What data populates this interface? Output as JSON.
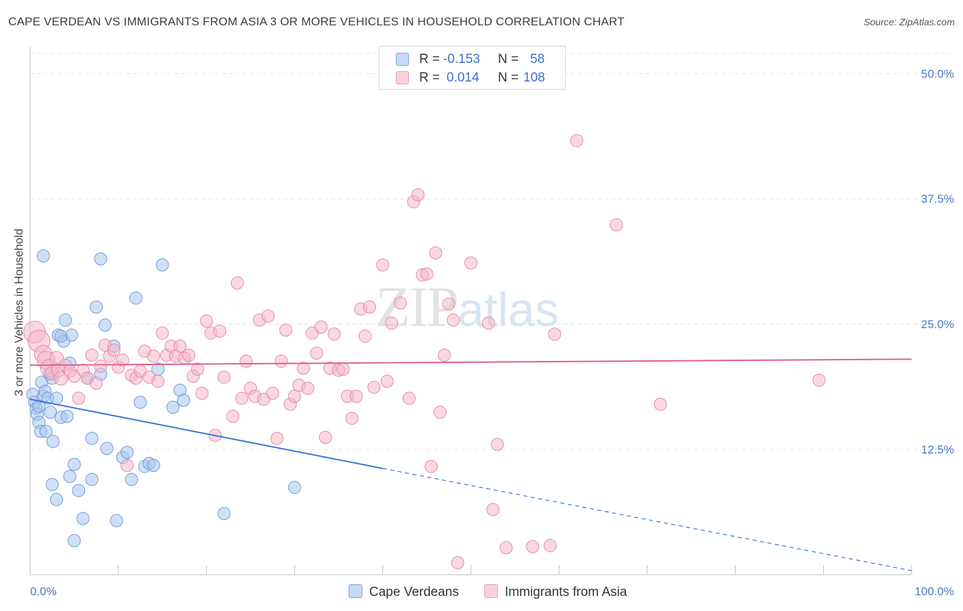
{
  "title": "CAPE VERDEAN VS IMMIGRANTS FROM ASIA 3 OR MORE VEHICLES IN HOUSEHOLD CORRELATION CHART",
  "source": "Source: ZipAtlas.com",
  "watermark": {
    "a": "ZIP",
    "b": "atlas"
  },
  "legend_top": {
    "rows": [
      {
        "r_key": "R =",
        "r_val": "-0.153",
        "n_key": "N =",
        "n_val": "58",
        "color": "#a8c6ef"
      },
      {
        "r_key": "R =",
        "r_val": "0.014",
        "n_key": "N =",
        "n_val": "108",
        "color": "#f4b8cb"
      }
    ]
  },
  "legend_bottom": [
    {
      "label": "Cape Verdeans",
      "color": "#a8c6ef"
    },
    {
      "label": "Immigrants from Asia",
      "color": "#f4b8cb"
    }
  ],
  "chart_data": {
    "type": "scatter",
    "title": "CAPE VERDEAN VS IMMIGRANTS FROM ASIA 3 OR MORE VEHICLES IN HOUSEHOLD CORRELATION CHART",
    "xlabel": "",
    "ylabel": "3 or more Vehicles in Household",
    "xlim": [
      0,
      100
    ],
    "ylim": [
      0,
      52
    ],
    "x_tick_labels": [
      "0.0%",
      "100.0%"
    ],
    "y_ticks": [
      12.5,
      25.0,
      37.5,
      50.0
    ],
    "y_tick_labels": [
      "12.5%",
      "25.0%",
      "37.5%",
      "50.0%"
    ],
    "grid": "horizontal dashed",
    "legend_position": "top-center",
    "series": [
      {
        "name": "Cape Verdeans",
        "color": "#a8c6ef",
        "stroke": "#6f9ad8",
        "trend": {
          "x0": 0,
          "y0": 17.5,
          "x1": 40,
          "y1": 10.6,
          "dash_to_x": 100,
          "dash_to_y": 0.4,
          "color": "#3a76d4"
        },
        "points": [
          [
            0.3,
            18.0
          ],
          [
            0.5,
            17.2
          ],
          [
            0.7,
            16.6
          ],
          [
            0.8,
            16.0
          ],
          [
            1.0,
            16.8
          ],
          [
            1.0,
            15.2
          ],
          [
            1.2,
            14.3
          ],
          [
            1.3,
            19.2
          ],
          [
            1.5,
            17.8
          ],
          [
            1.7,
            18.3
          ],
          [
            1.8,
            14.3
          ],
          [
            2.0,
            17.6
          ],
          [
            2.2,
            20.0
          ],
          [
            2.3,
            16.2
          ],
          [
            2.5,
            19.6
          ],
          [
            2.6,
            13.3
          ],
          [
            3.0,
            17.6
          ],
          [
            3.2,
            23.9
          ],
          [
            3.5,
            15.7
          ],
          [
            3.8,
            23.3
          ],
          [
            4.0,
            25.4
          ],
          [
            4.2,
            15.8
          ],
          [
            4.5,
            21.1
          ],
          [
            4.7,
            23.9
          ],
          [
            5.0,
            11.0
          ],
          [
            5.5,
            8.4
          ],
          [
            6.5,
            19.6
          ],
          [
            7.0,
            13.6
          ],
          [
            7.5,
            26.7
          ],
          [
            8.0,
            31.5
          ],
          [
            8.5,
            24.9
          ],
          [
            8.7,
            12.6
          ],
          [
            9.5,
            22.8
          ],
          [
            9.8,
            5.4
          ],
          [
            10.5,
            11.7
          ],
          [
            11.0,
            12.2
          ],
          [
            11.5,
            9.5
          ],
          [
            12.0,
            27.6
          ],
          [
            12.5,
            17.2
          ],
          [
            13.0,
            10.8
          ],
          [
            13.5,
            11.1
          ],
          [
            14.0,
            10.9
          ],
          [
            15.0,
            30.9
          ],
          [
            16.2,
            16.7
          ],
          [
            17.0,
            18.4
          ],
          [
            17.4,
            17.4
          ],
          [
            1.5,
            31.8
          ],
          [
            2.5,
            9.0
          ],
          [
            3.0,
            7.5
          ],
          [
            3.5,
            23.8
          ],
          [
            4.5,
            9.8
          ],
          [
            5.0,
            3.4
          ],
          [
            6.0,
            5.6
          ],
          [
            7.0,
            9.5
          ],
          [
            8.0,
            20.0
          ],
          [
            14.5,
            20.5
          ],
          [
            22.0,
            6.1
          ],
          [
            30.0,
            8.7
          ]
        ]
      },
      {
        "name": "Immigrants from Asia",
        "color": "#f4b8cb",
        "stroke": "#e58aa6",
        "trend": {
          "x0": 0,
          "y0": 20.9,
          "x1": 100,
          "y1": 21.5,
          "color": "#e0608a"
        },
        "points": [
          [
            0.5,
            24.2
          ],
          [
            1.0,
            23.3
          ],
          [
            1.5,
            22.0
          ],
          [
            1.8,
            21.4
          ],
          [
            2.2,
            20.6
          ],
          [
            2.5,
            20.1
          ],
          [
            3.0,
            21.6
          ],
          [
            3.2,
            20.4
          ],
          [
            3.5,
            19.6
          ],
          [
            4.0,
            20.9
          ],
          [
            4.5,
            20.3
          ],
          [
            5.0,
            19.8
          ],
          [
            5.5,
            17.6
          ],
          [
            6.0,
            20.4
          ],
          [
            6.5,
            19.6
          ],
          [
            7.0,
            21.9
          ],
          [
            7.5,
            19.1
          ],
          [
            8.0,
            20.8
          ],
          [
            8.5,
            22.9
          ],
          [
            9.0,
            21.8
          ],
          [
            9.5,
            22.4
          ],
          [
            10.0,
            20.7
          ],
          [
            10.5,
            21.4
          ],
          [
            11.0,
            10.9
          ],
          [
            11.5,
            19.9
          ],
          [
            12.0,
            19.6
          ],
          [
            12.5,
            20.3
          ],
          [
            13.0,
            22.3
          ],
          [
            13.5,
            19.7
          ],
          [
            14.0,
            21.8
          ],
          [
            14.5,
            19.3
          ],
          [
            15.0,
            24.1
          ],
          [
            15.5,
            21.9
          ],
          [
            16.0,
            22.8
          ],
          [
            16.5,
            21.8
          ],
          [
            17.0,
            22.8
          ],
          [
            17.5,
            21.6
          ],
          [
            18.0,
            21.9
          ],
          [
            18.5,
            19.8
          ],
          [
            19.0,
            20.5
          ],
          [
            19.5,
            18.1
          ],
          [
            20.0,
            25.3
          ],
          [
            20.5,
            24.1
          ],
          [
            21.0,
            13.9
          ],
          [
            21.5,
            24.3
          ],
          [
            22.0,
            19.7
          ],
          [
            23.0,
            15.8
          ],
          [
            23.5,
            29.1
          ],
          [
            24.0,
            17.6
          ],
          [
            24.5,
            21.3
          ],
          [
            25.0,
            18.6
          ],
          [
            25.5,
            17.8
          ],
          [
            26.0,
            25.4
          ],
          [
            26.5,
            17.5
          ],
          [
            27.0,
            25.8
          ],
          [
            27.5,
            18.1
          ],
          [
            28.0,
            13.6
          ],
          [
            28.5,
            21.3
          ],
          [
            29.0,
            24.4
          ],
          [
            29.5,
            17.0
          ],
          [
            30.0,
            17.8
          ],
          [
            30.5,
            18.9
          ],
          [
            31.0,
            20.6
          ],
          [
            31.5,
            18.6
          ],
          [
            32.0,
            24.1
          ],
          [
            32.5,
            22.1
          ],
          [
            33.0,
            24.7
          ],
          [
            33.5,
            13.7
          ],
          [
            34.0,
            20.6
          ],
          [
            34.5,
            24.0
          ],
          [
            35.0,
            20.4
          ],
          [
            35.5,
            20.5
          ],
          [
            36.0,
            17.8
          ],
          [
            36.5,
            15.6
          ],
          [
            37.0,
            17.8
          ],
          [
            37.5,
            26.5
          ],
          [
            38.0,
            23.8
          ],
          [
            38.5,
            26.7
          ],
          [
            39.0,
            18.7
          ],
          [
            40.0,
            30.9
          ],
          [
            40.5,
            19.3
          ],
          [
            41.0,
            25.1
          ],
          [
            42.0,
            27.1
          ],
          [
            43.0,
            17.6
          ],
          [
            43.5,
            37.2
          ],
          [
            44.0,
            37.9
          ],
          [
            44.5,
            29.9
          ],
          [
            45.0,
            30.0
          ],
          [
            45.5,
            10.8
          ],
          [
            46.0,
            32.1
          ],
          [
            46.5,
            16.2
          ],
          [
            47.0,
            21.9
          ],
          [
            47.5,
            27.0
          ],
          [
            48.0,
            25.4
          ],
          [
            48.5,
            1.2
          ],
          [
            50.0,
            31.1
          ],
          [
            52.0,
            25.1
          ],
          [
            52.5,
            6.5
          ],
          [
            53.0,
            13.0
          ],
          [
            54.0,
            2.7
          ],
          [
            57.0,
            2.8
          ],
          [
            59.0,
            2.9
          ],
          [
            59.5,
            24.0
          ],
          [
            62.0,
            43.3
          ],
          [
            66.5,
            34.9
          ],
          [
            71.5,
            17.0
          ],
          [
            89.5,
            19.4
          ]
        ]
      }
    ]
  }
}
